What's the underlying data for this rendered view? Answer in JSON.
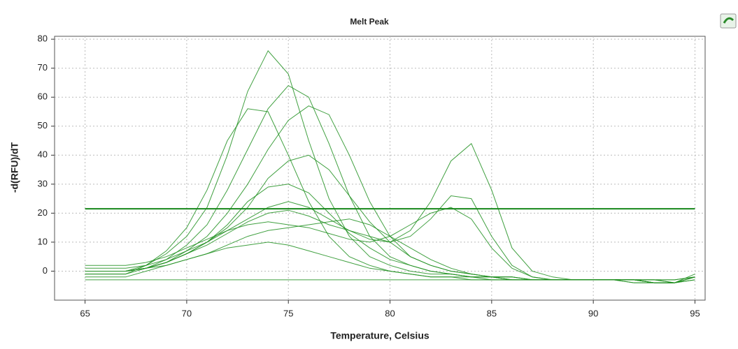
{
  "chart_data": {
    "type": "line",
    "title": "Melt Peak",
    "x_label": "Temperature, Celsius",
    "y_label": "-d(RFU)/dT",
    "color": "#1f8f1f",
    "threshold": 21.5,
    "threshold_color": "#17871a",
    "xlim": [
      63.5,
      95.5
    ],
    "ylim": [
      -10,
      81
    ],
    "xticks": [
      65,
      70,
      75,
      80,
      85,
      90,
      95
    ],
    "yticks": [
      0,
      10,
      20,
      30,
      40,
      50,
      60,
      70,
      80
    ],
    "grid": true,
    "x": [
      65,
      66,
      67,
      68,
      69,
      70,
      71,
      72,
      73,
      74,
      75,
      76,
      77,
      78,
      79,
      80,
      81,
      82,
      83,
      84,
      85,
      86,
      87,
      88,
      89,
      90,
      91,
      92,
      93,
      94,
      95
    ],
    "series": [
      {
        "values": [
          0,
          0,
          0,
          2,
          6,
          12,
          22,
          40,
          62,
          76,
          68,
          45,
          25,
          12,
          5,
          2,
          0,
          -1,
          -1,
          -2,
          -2,
          -2,
          -3,
          -3,
          -3,
          -3,
          -3,
          -3,
          -3,
          -3,
          -2
        ]
      },
      {
        "values": [
          0,
          0,
          0,
          1,
          4,
          9,
          16,
          28,
          42,
          56,
          64,
          60,
          44,
          26,
          12,
          5,
          2,
          0,
          -1,
          -2,
          -2,
          -3,
          -3,
          -3,
          -3,
          -3,
          -3,
          -3,
          -3,
          -4,
          -2
        ]
      },
      {
        "values": [
          0,
          0,
          0,
          1,
          3,
          7,
          12,
          20,
          30,
          42,
          52,
          57,
          54,
          40,
          24,
          12,
          5,
          2,
          0,
          -1,
          -2,
          -2,
          -3,
          -3,
          -3,
          -3,
          -3,
          -3,
          -4,
          -4,
          -2
        ]
      },
      {
        "values": [
          -1,
          -1,
          -1,
          2,
          7,
          15,
          28,
          45,
          56,
          55,
          40,
          24,
          12,
          5,
          2,
          0,
          -1,
          -2,
          -2,
          -2,
          -3,
          -3,
          -3,
          -3,
          -3,
          -3,
          -3,
          -3,
          -4,
          -4,
          -2
        ]
      },
      {
        "values": [
          0,
          0,
          0,
          1,
          3,
          6,
          9,
          13,
          17,
          20,
          21,
          19,
          16,
          14,
          12,
          10,
          14,
          24,
          38,
          44,
          28,
          8,
          0,
          -2,
          -3,
          -3,
          -3,
          -3,
          -3,
          -3,
          -2
        ]
      },
      {
        "values": [
          1,
          1,
          1,
          2,
          4,
          7,
          10,
          14,
          18,
          22,
          24,
          22,
          18,
          14,
          11,
          10,
          12,
          18,
          26,
          25,
          12,
          2,
          -2,
          -3,
          -3,
          -3,
          -3,
          -4,
          -4,
          -4,
          -2
        ]
      },
      {
        "values": [
          0,
          0,
          0,
          1,
          3,
          6,
          10,
          15,
          22,
          32,
          38,
          40,
          35,
          26,
          17,
          10,
          5,
          2,
          0,
          -1,
          -2,
          -2,
          -3,
          -3,
          -3,
          -3,
          -3,
          -3,
          -4,
          -4,
          -2
        ]
      },
      {
        "values": [
          -1,
          -1,
          -1,
          1,
          3,
          6,
          10,
          16,
          24,
          29,
          30,
          27,
          20,
          13,
          8,
          4,
          2,
          0,
          -1,
          -2,
          -2,
          -3,
          -3,
          -3,
          -3,
          -3,
          -3,
          -3,
          -4,
          -4,
          -2
        ]
      },
      {
        "values": [
          -2,
          -2,
          -2,
          0,
          2,
          4,
          6,
          8,
          9,
          10,
          9,
          7,
          5,
          3,
          1,
          0,
          -1,
          -2,
          -2,
          -3,
          -3,
          -3,
          -3,
          -3,
          -3,
          -3,
          -3,
          -4,
          -4,
          -4,
          -3
        ]
      },
      {
        "values": [
          -3,
          -3,
          -3,
          -3,
          -3,
          -3,
          -3,
          -3,
          -3,
          -3,
          -3,
          -3,
          -3,
          -3,
          -3,
          -3,
          -3,
          -3,
          -3,
          -3,
          -3,
          -3,
          -3,
          -3,
          -3,
          -3,
          -3,
          -3,
          -3,
          -4,
          -3
        ]
      },
      {
        "values": [
          0,
          0,
          0,
          1,
          2,
          4,
          6,
          9,
          12,
          14,
          15,
          16,
          17,
          18,
          16,
          12,
          8,
          4,
          1,
          -1,
          -2,
          -3,
          -3,
          -3,
          -3,
          -3,
          -3,
          -3,
          -4,
          -4,
          -2
        ]
      },
      {
        "values": [
          2,
          2,
          2,
          3,
          5,
          8,
          11,
          14,
          16,
          17,
          16,
          15,
          13,
          11,
          10,
          12,
          16,
          20,
          22,
          18,
          8,
          1,
          -2,
          -3,
          -3,
          -3,
          -3,
          -3,
          -4,
          -4,
          -1
        ]
      }
    ]
  }
}
